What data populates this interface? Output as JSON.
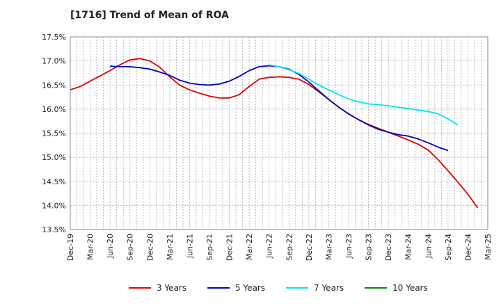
{
  "chart_data": {
    "type": "line",
    "title": "[1716]  Trend of Mean of ROA",
    "xlabel": "",
    "ylabel": "",
    "ylim": [
      13.5,
      17.5
    ],
    "y_ticks": [
      13.5,
      14.0,
      14.5,
      15.0,
      15.5,
      16.0,
      16.5,
      17.0,
      17.5
    ],
    "y_tick_labels": [
      "13.5%",
      "14.0%",
      "14.5%",
      "15.0%",
      "15.5%",
      "16.0%",
      "16.5%",
      "17.0%",
      "17.5%"
    ],
    "x_tick_labels": [
      "Dec-19",
      "Mar-20",
      "Jun-20",
      "Sep-20",
      "Dec-20",
      "Mar-21",
      "Jun-21",
      "Sep-21",
      "Dec-21",
      "Mar-22",
      "Jun-22",
      "Sep-22",
      "Dec-22",
      "Mar-23",
      "Jun-23",
      "Sep-23",
      "Dec-23",
      "Mar-24",
      "Jun-24",
      "Sep-24",
      "Dec-24",
      "Mar-25"
    ],
    "grid": true,
    "legend_position": "bottom",
    "series": [
      {
        "name": "3 Years",
        "color": "#dd0000",
        "start_index": 0,
        "values": [
          16.4,
          16.47,
          16.58,
          16.69,
          16.8,
          16.92,
          17.02,
          17.05,
          17.0,
          16.87,
          16.67,
          16.5,
          16.4,
          16.33,
          16.27,
          16.23,
          16.23,
          16.3,
          16.47,
          16.62,
          16.66,
          16.67,
          16.66,
          16.62,
          16.51,
          16.36,
          16.2,
          16.04,
          15.9,
          15.78,
          15.68,
          15.6,
          15.52,
          15.44,
          15.36,
          15.27,
          15.15,
          14.95,
          14.72,
          14.48,
          14.23,
          13.95
        ]
      },
      {
        "name": "5 Years",
        "color": "#0000bb",
        "start_index": 4,
        "values": [
          16.89,
          16.88,
          16.88,
          16.86,
          16.83,
          16.77,
          16.7,
          16.6,
          16.54,
          16.51,
          16.5,
          16.52,
          16.58,
          16.68,
          16.8,
          16.88,
          16.9,
          16.88,
          16.83,
          16.72,
          16.56,
          16.38,
          16.2,
          16.04,
          15.9,
          15.78,
          15.67,
          15.58,
          15.52,
          15.47,
          15.44,
          15.38,
          15.3,
          15.21,
          15.14
        ]
      },
      {
        "name": "7 Years",
        "color": "#00e5ee",
        "start_index": 20,
        "values": [
          16.92,
          16.88,
          16.82,
          16.74,
          16.62,
          16.5,
          16.4,
          16.3,
          16.21,
          16.15,
          16.11,
          16.09,
          16.07,
          16.04,
          16.01,
          15.98,
          15.95,
          15.9,
          15.8,
          15.67
        ]
      },
      {
        "name": "10 Years",
        "color": "#008800",
        "start_index": 0,
        "values": []
      }
    ]
  }
}
